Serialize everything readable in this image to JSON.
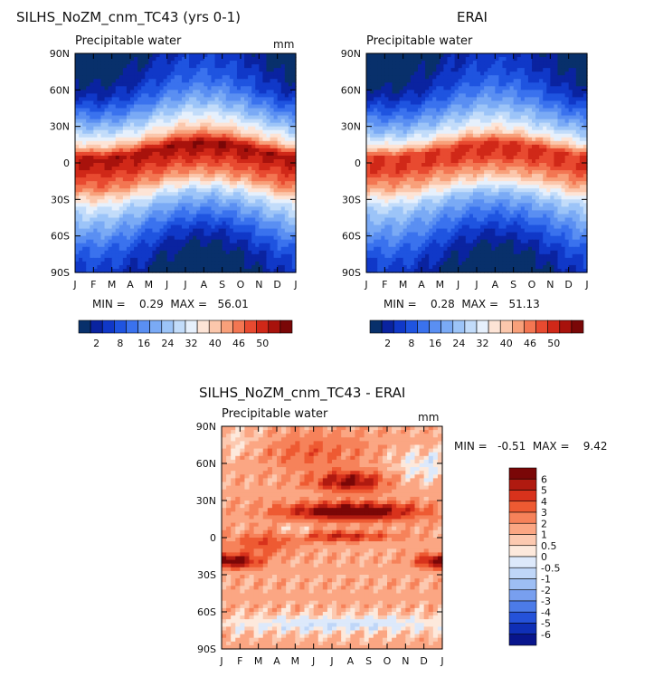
{
  "panels": [
    {
      "id": "model",
      "title": "SILHS_NoZM_cnm_TC43 (yrs 0-1)",
      "subtitle": "Precipitable water",
      "units": "mm",
      "x_ticks": [
        "J",
        "F",
        "M",
        "A",
        "M",
        "J",
        "J",
        "A",
        "S",
        "O",
        "N",
        "D",
        "J"
      ],
      "y_ticks": [
        "90N",
        "60N",
        "30N",
        "0",
        "30S",
        "60S",
        "90S"
      ],
      "stats": "MIN =    0.29  MAX =   56.01",
      "stats_min": 0.29,
      "stats_max": 56.01,
      "lat_profile": [
        [
          -90,
          3
        ],
        [
          -75,
          6
        ],
        [
          -60,
          11
        ],
        [
          -45,
          18
        ],
        [
          -30,
          26
        ],
        [
          -15,
          40
        ],
        [
          0,
          48
        ],
        [
          10,
          52
        ],
        [
          20,
          36
        ],
        [
          30,
          28
        ],
        [
          45,
          18
        ],
        [
          60,
          10
        ],
        [
          75,
          6
        ],
        [
          90,
          3
        ]
      ],
      "itcz_amp_lat": 7,
      "polar_summer_boost": 4
    },
    {
      "id": "obs",
      "title": "ERAI",
      "subtitle": "Precipitable water",
      "units": "",
      "x_ticks": [
        "J",
        "F",
        "M",
        "A",
        "M",
        "J",
        "J",
        "A",
        "S",
        "O",
        "N",
        "D",
        "J"
      ],
      "y_ticks": [
        "90N",
        "60N",
        "30N",
        "0",
        "30S",
        "60S",
        "90S"
      ],
      "stats": "MIN =    0.28  MAX =   51.13",
      "stats_min": 0.28,
      "stats_max": 51.13,
      "lat_profile": [
        [
          -90,
          3
        ],
        [
          -75,
          6
        ],
        [
          -60,
          11
        ],
        [
          -45,
          17
        ],
        [
          -30,
          24
        ],
        [
          -15,
          37
        ],
        [
          0,
          46
        ],
        [
          10,
          47
        ],
        [
          20,
          33
        ],
        [
          30,
          25
        ],
        [
          45,
          16
        ],
        [
          60,
          9
        ],
        [
          75,
          5
        ],
        [
          90,
          3
        ]
      ],
      "itcz_amp_lat": 6,
      "polar_summer_boost": 4
    }
  ],
  "top_colorbar": {
    "colors": [
      "#08306b",
      "#0a23a0",
      "#1038c8",
      "#1f54e0",
      "#3a72ee",
      "#5a8ff2",
      "#7aaaf5",
      "#9cc4f8",
      "#c2dcfa",
      "#e6f0fc",
      "#fde4d6",
      "#fbc7ac",
      "#f8a07a",
      "#f37652",
      "#e84a30",
      "#d02818",
      "#a8120c",
      "#7a0707"
    ],
    "labels": [
      "2",
      "8",
      "16",
      "24",
      "32",
      "40",
      "46",
      "50"
    ]
  },
  "diff_panel": {
    "title": "SILHS_NoZM_cnm_TC43 - ERAI",
    "subtitle": "Precipitable water",
    "units": "mm",
    "x_ticks": [
      "J",
      "F",
      "M",
      "A",
      "M",
      "J",
      "J",
      "A",
      "S",
      "O",
      "N",
      "D",
      "J"
    ],
    "y_ticks": [
      "90N",
      "60N",
      "30N",
      "0",
      "30S",
      "60S",
      "90S"
    ],
    "stats": "MIN =   -0.51  MAX =    9.42",
    "stats_min": -0.51,
    "stats_max": 9.42
  },
  "diff_colorbar": {
    "levels": [
      "6",
      "5",
      "4",
      "3",
      "2",
      "1",
      "0.5",
      "0",
      "-0.5",
      "-1",
      "-2",
      "-3",
      "-4",
      "-5",
      "-6"
    ],
    "colors": [
      "#7a0707",
      "#b01a10",
      "#d8321c",
      "#ee5a32",
      "#f6825a",
      "#fba683",
      "#fcc9b0",
      "#fde9dc",
      "#dde9fb",
      "#bfd6f8",
      "#9dbef4",
      "#789fef",
      "#4c7be8",
      "#2552d9",
      "#0f2fb6",
      "#08158c"
    ]
  }
}
